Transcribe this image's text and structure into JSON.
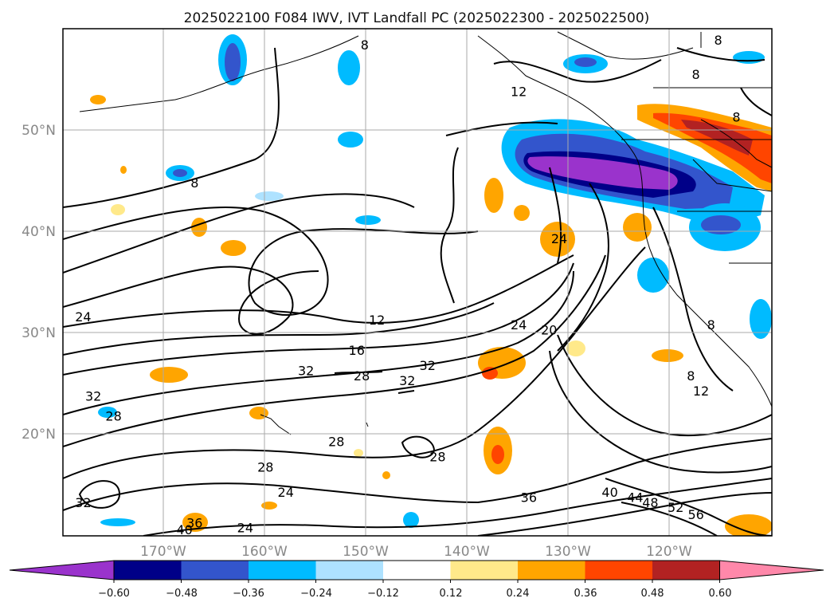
{
  "chart_data": {
    "type": "heatmap",
    "title": "2025022100 F084 IWV, IVT Landfall PC (2025022300 - 2025022500)",
    "x_ticks": [
      "170°W",
      "160°W",
      "150°W",
      "140°W",
      "130°W",
      "120°W"
    ],
    "y_ticks": [
      "50°N",
      "40°N",
      "30°N",
      "20°N"
    ],
    "xlim": [
      -180,
      -110
    ],
    "ylim": [
      10,
      60
    ],
    "grid": true,
    "colorbar": {
      "orientation": "horizontal",
      "extend": "both",
      "colors": [
        "#9a33cc",
        "#000088",
        "#3355cc",
        "#00bbff",
        "#aee2ff",
        "#ffffff",
        "#ffe98a",
        "#ffa500",
        "#ff4500",
        "#b22222",
        "#ff88aa"
      ],
      "tick_labels": [
        "−0.60",
        "−0.48",
        "−0.36",
        "−0.24",
        "−0.12",
        "0.12",
        "0.24",
        "0.36",
        "0.48",
        "0.60"
      ]
    },
    "contour_labels": [
      {
        "text": "8",
        "lon": -150.2,
        "lat": 58.1
      },
      {
        "text": "8",
        "lon": -115.3,
        "lat": 58.6
      },
      {
        "text": "8",
        "lon": -117.5,
        "lat": 55.2
      },
      {
        "text": "8",
        "lon": -113.5,
        "lat": 51.0
      },
      {
        "text": "8",
        "lon": -167.0,
        "lat": 44.5
      },
      {
        "text": "8",
        "lon": -116.0,
        "lat": 30.5
      },
      {
        "text": "8",
        "lon": -118.0,
        "lat": 25.5
      },
      {
        "text": "12",
        "lon": -135.0,
        "lat": 53.5
      },
      {
        "text": "12",
        "lon": -149.0,
        "lat": 31.0
      },
      {
        "text": "12",
        "lon": -117.0,
        "lat": 24.0
      },
      {
        "text": "16",
        "lon": -151.0,
        "lat": 28.0
      },
      {
        "text": "20",
        "lon": -132.0,
        "lat": 30.0
      },
      {
        "text": "24",
        "lon": -131.0,
        "lat": 39.0
      },
      {
        "text": "24",
        "lon": -135.0,
        "lat": 30.5
      },
      {
        "text": "24",
        "lon": -178.0,
        "lat": 31.3
      },
      {
        "text": "24",
        "lon": -162.0,
        "lat": 10.5
      },
      {
        "text": "24",
        "lon": -158.0,
        "lat": 14.0
      },
      {
        "text": "28",
        "lon": -150.5,
        "lat": 25.5
      },
      {
        "text": "28",
        "lon": -175.0,
        "lat": 21.5
      },
      {
        "text": "28",
        "lon": -160.0,
        "lat": 16.5
      },
      {
        "text": "28",
        "lon": -153.0,
        "lat": 19.0
      },
      {
        "text": "28",
        "lon": -143.0,
        "lat": 17.5
      },
      {
        "text": "32",
        "lon": -146.0,
        "lat": 25.0
      },
      {
        "text": "32",
        "lon": -144.0,
        "lat": 26.5
      },
      {
        "text": "32",
        "lon": -156.0,
        "lat": 26.0
      },
      {
        "text": "32",
        "lon": -177.0,
        "lat": 23.5
      },
      {
        "text": "32",
        "lon": -178.0,
        "lat": 13.0
      },
      {
        "text": "36",
        "lon": -167.0,
        "lat": 11.0
      },
      {
        "text": "36",
        "lon": -134.0,
        "lat": 13.5
      },
      {
        "text": "40",
        "lon": -168.0,
        "lat": 10.3
      },
      {
        "text": "40",
        "lon": -126.0,
        "lat": 14.0
      },
      {
        "text": "44",
        "lon": -123.5,
        "lat": 13.5
      },
      {
        "text": "48",
        "lon": -122.0,
        "lat": 13.0
      },
      {
        "text": "52",
        "lon": -119.5,
        "lat": 12.5
      },
      {
        "text": "56",
        "lon": -117.5,
        "lat": 11.8
      }
    ],
    "shaded_regions": [
      {
        "level": -0.6,
        "lon": [
          -136,
          -119
        ],
        "lat": [
          43.5,
          47
        ]
      },
      {
        "level": -0.48,
        "lon": [
          -137,
          -116
        ],
        "lat": [
          43,
          48
        ]
      },
      {
        "level": -0.36,
        "lon": [
          -138,
          -114
        ],
        "lat": [
          42.5,
          49.5
        ]
      },
      {
        "level": 0.48,
        "lon": [
          -117,
          -110
        ],
        "lat": [
          47,
          52
        ]
      },
      {
        "level": 0.36,
        "lon": [
          -118,
          -110
        ],
        "lat": [
          44,
          52.5
        ]
      },
      {
        "level": 0.36,
        "lon": [
          -136,
          -134
        ],
        "lat": [
          16,
          20
        ]
      }
    ]
  }
}
